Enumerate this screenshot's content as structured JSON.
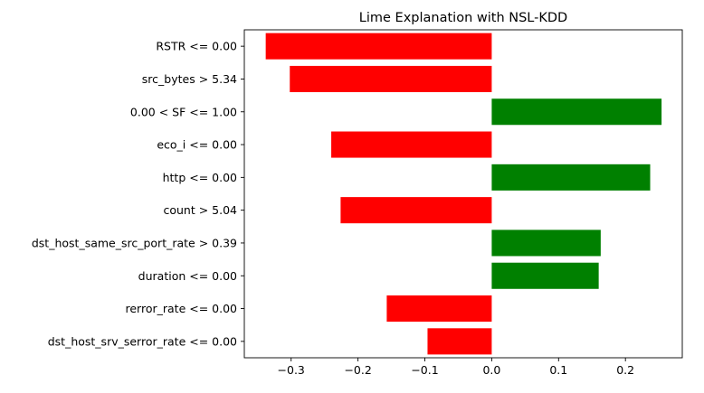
{
  "chart_data": {
    "type": "bar",
    "orientation": "horizontal",
    "title": "Lime Explanation with NSL-KDD",
    "xlabel": "",
    "ylabel": "",
    "categories": [
      "RSTR <= 0.00",
      "src_bytes > 5.34",
      "0.00 < SF <= 1.00",
      "eco_i <= 0.00",
      "http <= 0.00",
      "count > 5.04",
      "dst_host_same_src_port_rate > 0.39",
      "duration <= 0.00",
      "rerror_rate <= 0.00",
      "dst_host_srv_serror_rate <= 0.00"
    ],
    "values": [
      -0.338,
      -0.302,
      0.254,
      -0.24,
      0.237,
      -0.226,
      0.163,
      0.16,
      -0.157,
      -0.096
    ],
    "xlim": [
      -0.37,
      0.285
    ],
    "xticks": [
      -0.3,
      -0.2,
      -0.1,
      0.0,
      0.1,
      0.2
    ],
    "xtick_labels": [
      "−0.3",
      "−0.2",
      "−0.1",
      "0.0",
      "0.1",
      "0.2"
    ],
    "grid": false,
    "colors": {
      "positive": "#008000",
      "negative": "#ff0000"
    }
  }
}
